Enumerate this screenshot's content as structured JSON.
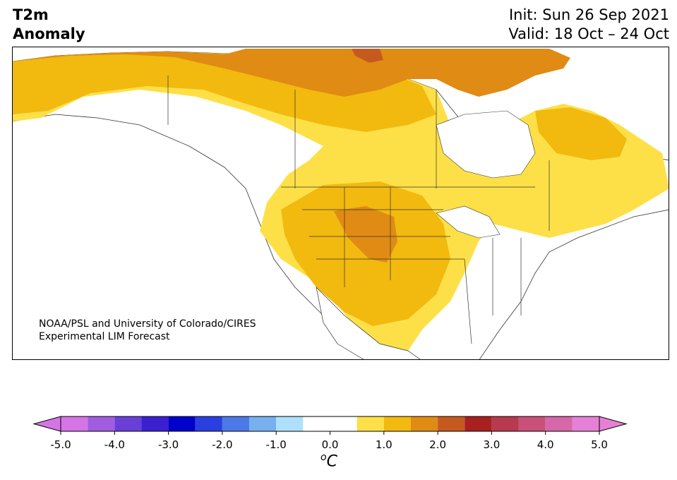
{
  "header": {
    "title_line1": "T2m",
    "title_line2": "Anomaly",
    "init": "Init: Sun 26 Sep 2021",
    "valid": "Valid: 18 Oct – 24 Oct"
  },
  "credit": {
    "line1": "NOAA/PSL and University of Colorado/CIRES",
    "line2": "Experimental LIM Forecast"
  },
  "map": {
    "region": "North America",
    "variable": "2 m temperature anomaly",
    "anomaly_regions": [
      {
        "area": "Alaska / Yukon / Arctic coast",
        "level": "1.5 to 2.0"
      },
      {
        "area": "Canadian Arctic Archipelago",
        "level": "1.5 to 2.5"
      },
      {
        "area": "Northern Plains / Wyoming / Colorado",
        "level": "1.5 to 2.0"
      },
      {
        "area": "Southern Plains / Texas",
        "level": "1.0 to 1.5"
      },
      {
        "area": "Eastern Canada / Quebec",
        "level": "0.5 to 1.0"
      },
      {
        "area": "Southeastern US",
        "level": "-0.5 to 0.5"
      }
    ],
    "colors": {
      "land_neutral": "#ffffff",
      "warm_0_5_1_0": "#fde047",
      "warm_1_0_1_5": "#f2b90f",
      "warm_1_5_2_0": "#e08b14",
      "warm_2_0_2_5": "#c65a1e",
      "boundary": "#333333"
    }
  },
  "colorbar": {
    "unit_base": "C",
    "unit_sup": "o",
    "ticks": [
      "-5.0",
      "-4.0",
      "-3.0",
      "-2.0",
      "-1.0",
      "0.0",
      "1.0",
      "2.0",
      "3.0",
      "4.0",
      "5.0"
    ],
    "tick_values": [
      -5,
      -4,
      -3,
      -2,
      -1,
      0,
      1,
      2,
      3,
      4,
      5
    ],
    "bins": [
      -5.0,
      -4.5,
      -4.0,
      -3.5,
      -3.0,
      -2.5,
      -2.0,
      -1.5,
      -1.0,
      -0.5,
      0.5,
      1.0,
      1.5,
      2.0,
      2.5,
      3.0,
      3.5,
      4.0,
      4.5,
      5.0
    ],
    "under_color": "#d575e5",
    "over_color": "#e680d6",
    "colors": [
      "#d575e5",
      "#a05de0",
      "#6a3fd8",
      "#3b20d0",
      "#0000cc",
      "#2a3fe0",
      "#4c78e8",
      "#76b0ee",
      "#aee0fb",
      "#ffffff",
      "#fde047",
      "#f2b90f",
      "#e08b14",
      "#c65a1e",
      "#a82020",
      "#b83a4e",
      "#c95078",
      "#d667a8",
      "#e680d6"
    ]
  }
}
